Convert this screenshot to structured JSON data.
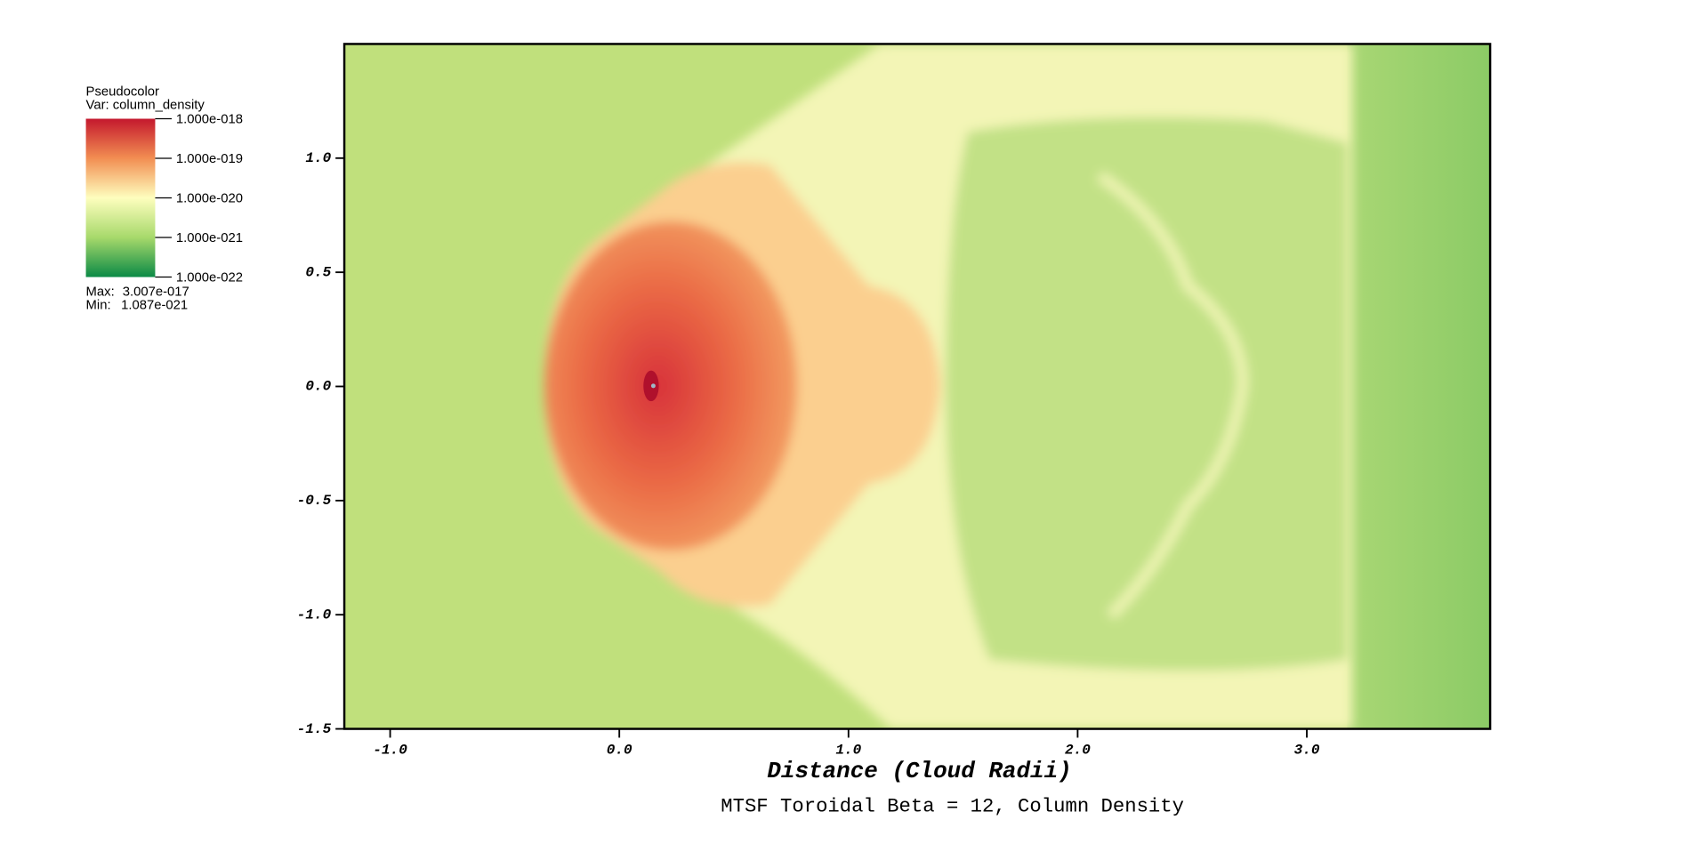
{
  "chart_data": {
    "type": "pseudocolor",
    "title": "MTSF Toroidal Beta = 12, Column Density",
    "xlabel": "Distance (Cloud Radii)",
    "xlim": [
      -1.2,
      3.8
    ],
    "ylim": [
      -1.5,
      1.5
    ],
    "xticks": [
      {
        "value": -1,
        "label": "-1.0"
      },
      {
        "value": 0,
        "label": "0.0"
      },
      {
        "value": 1,
        "label": "1.0"
      },
      {
        "value": 2,
        "label": "2.0"
      },
      {
        "value": 3,
        "label": "3.0"
      }
    ],
    "yticks": [
      {
        "value": -1.5,
        "label": "-1.5"
      },
      {
        "value": -1,
        "label": "-1.0"
      },
      {
        "value": -0.5,
        "label": "-0.5"
      },
      {
        "value": 0,
        "label": "0.0"
      },
      {
        "value": 0.5,
        "label": "0.5"
      },
      {
        "value": 1,
        "label": "1.0"
      }
    ],
    "legend": {
      "title": "Pseudocolor",
      "variable": "Var: column_density",
      "scale": "log",
      "range": [
        1e-22,
        1e-18
      ],
      "colors": [
        "#0b8a46",
        "#a7d96b",
        "#fefebe",
        "#f28e52",
        "#c4182d"
      ],
      "ticks": [
        {
          "value": 1e-18,
          "label": "1.000e-018"
        },
        {
          "value": 1e-19,
          "label": "1.000e-019"
        },
        {
          "value": 1e-20,
          "label": "1.000e-020"
        },
        {
          "value": 1e-21,
          "label": "1.000e-021"
        },
        {
          "value": 1e-22,
          "label": "1.000e-022"
        }
      ],
      "max_label": "Max:",
      "max": {
        "value": 3.007e-17,
        "label": "3.007e-017"
      },
      "min_label": "Min:",
      "min": {
        "value": 1.087e-21,
        "label": "1.087e-021"
      }
    }
  }
}
